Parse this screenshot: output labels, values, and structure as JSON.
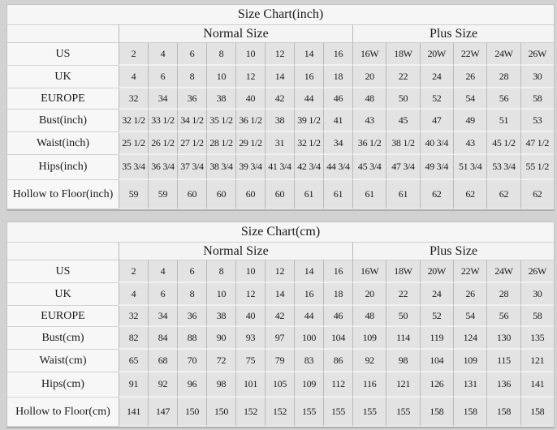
{
  "colors": {
    "page_background": "#d2d2d2",
    "data_cell_background": "#e3e3e3",
    "label_cell_background": "#f7f7f7",
    "vertical_border": "#b9b9b9",
    "horizontal_border": "#f1f1f1",
    "text": "#1a1a1a"
  },
  "tables": [
    {
      "title": "Size Chart(inch)",
      "group_headers": [
        "Normal Size",
        "Plus Size"
      ],
      "normal_col_count": 8,
      "plus_col_count": 6,
      "rows": [
        {
          "label": "US",
          "values": [
            "2",
            "4",
            "6",
            "8",
            "10",
            "12",
            "14",
            "16",
            "16W",
            "18W",
            "20W",
            "22W",
            "24W",
            "26W"
          ]
        },
        {
          "label": "UK",
          "values": [
            "4",
            "6",
            "8",
            "10",
            "12",
            "14",
            "16",
            "18",
            "20",
            "22",
            "24",
            "26",
            "28",
            "30"
          ]
        },
        {
          "label": "EUROPE",
          "values": [
            "32",
            "34",
            "36",
            "38",
            "40",
            "42",
            "44",
            "46",
            "48",
            "50",
            "52",
            "54",
            "56",
            "58"
          ]
        },
        {
          "label": "Bust(inch)",
          "values": [
            "32 1/2",
            "33 1/2",
            "34 1/2",
            "35 1/2",
            "36 1/2",
            "38",
            "39 1/2",
            "41",
            "43",
            "45",
            "47",
            "49",
            "51",
            "53"
          ]
        },
        {
          "label": "Waist(inch)",
          "values": [
            "25 1/2",
            "26 1/2",
            "27 1/2",
            "28 1/2",
            "29 1/2",
            "31",
            "32 1/2",
            "34",
            "36 1/2",
            "38 1/2",
            "40 3/4",
            "43",
            "45 1/2",
            "47 1/2"
          ]
        },
        {
          "label": "Hips(inch)",
          "values": [
            "35 3/4",
            "36 3/4",
            "37 3/4",
            "38 3/4",
            "39 3/4",
            "41 3/4",
            "42 3/4",
            "44 3/4",
            "45 3/4",
            "47 3/4",
            "49 3/4",
            "51 3/4",
            "53 3/4",
            "55 1/2"
          ]
        },
        {
          "label": "Hollow to Floor(inch)",
          "values": [
            "59",
            "59",
            "60",
            "60",
            "60",
            "60",
            "61",
            "61",
            "61",
            "61",
            "62",
            "62",
            "62",
            "62"
          ]
        }
      ]
    },
    {
      "title": "Size Chart(cm)",
      "group_headers": [
        "Normal Size",
        "Plus Size"
      ],
      "normal_col_count": 8,
      "plus_col_count": 6,
      "rows": [
        {
          "label": "US",
          "values": [
            "2",
            "4",
            "6",
            "8",
            "10",
            "12",
            "14",
            "16",
            "16W",
            "18W",
            "20W",
            "22W",
            "24W",
            "26W"
          ]
        },
        {
          "label": "UK",
          "values": [
            "4",
            "6",
            "8",
            "10",
            "12",
            "14",
            "16",
            "18",
            "20",
            "22",
            "24",
            "26",
            "28",
            "30"
          ]
        },
        {
          "label": "EUROPE",
          "values": [
            "32",
            "34",
            "36",
            "38",
            "40",
            "42",
            "44",
            "46",
            "48",
            "50",
            "52",
            "54",
            "56",
            "58"
          ]
        },
        {
          "label": "Bust(cm)",
          "values": [
            "82",
            "84",
            "88",
            "90",
            "93",
            "97",
            "100",
            "104",
            "109",
            "114",
            "119",
            "124",
            "130",
            "135"
          ]
        },
        {
          "label": "Waist(cm)",
          "values": [
            "65",
            "68",
            "70",
            "72",
            "75",
            "79",
            "83",
            "86",
            "92",
            "98",
            "104",
            "109",
            "115",
            "121"
          ]
        },
        {
          "label": "Hips(cm)",
          "values": [
            "91",
            "92",
            "96",
            "98",
            "101",
            "105",
            "109",
            "112",
            "116",
            "121",
            "126",
            "131",
            "136",
            "141"
          ]
        },
        {
          "label": "Hollow to Floor(cm)",
          "values": [
            "141",
            "147",
            "150",
            "150",
            "152",
            "152",
            "155",
            "155",
            "155",
            "155",
            "158",
            "158",
            "158",
            "158"
          ]
        }
      ]
    }
  ]
}
